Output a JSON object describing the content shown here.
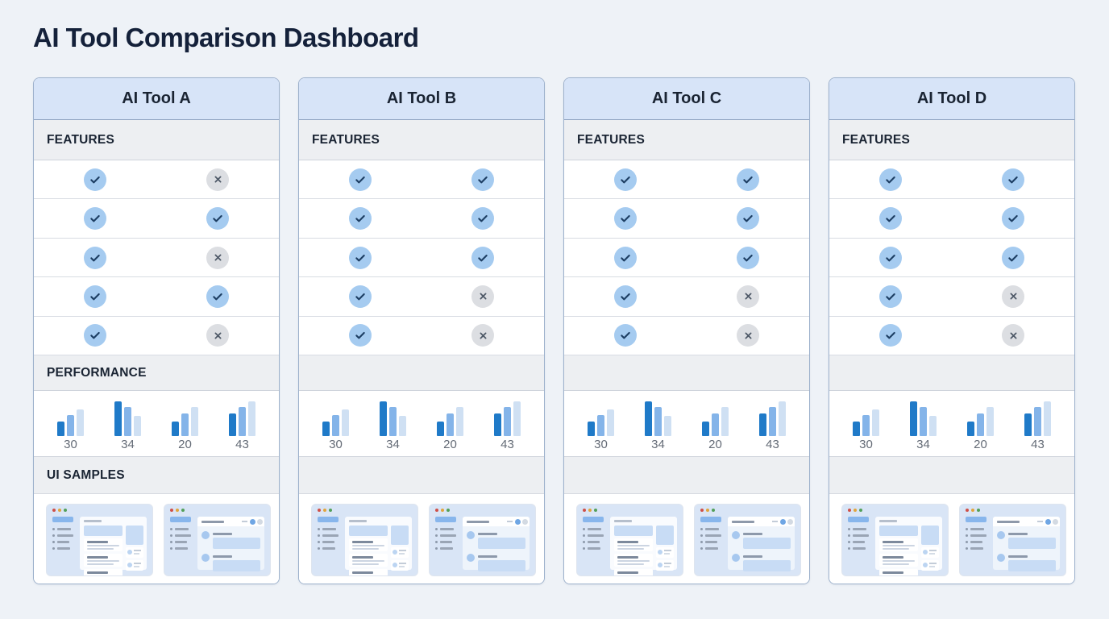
{
  "page": {
    "title": "AI Tool Comparison Dashboard"
  },
  "section_labels": {
    "features": "FEATURES",
    "performance": "PERFORMANCE",
    "ui_samples": "UI SAMPLES"
  },
  "colors": {
    "page_bg": "#eef2f7",
    "card_border": "#9db1cc",
    "card_header_bg": "#d7e4f8",
    "section_bar_bg": "#edeff2",
    "check_circle": "#a5cbf0",
    "check_mark": "#1d3e63",
    "cross_circle": "#dcdee2",
    "cross_mark": "#4d5866",
    "title_color": "#14213a"
  },
  "tools": [
    {
      "name": "AI Tool A",
      "performance_label_visible": true,
      "ui_samples_label_visible": true,
      "features": [
        [
          "check",
          "cross"
        ],
        [
          "check",
          "check"
        ],
        [
          "check",
          "cross"
        ],
        [
          "check",
          "check"
        ],
        [
          "check",
          "cross"
        ]
      ]
    },
    {
      "name": "AI Tool B",
      "performance_label_visible": false,
      "ui_samples_label_visible": false,
      "features": [
        [
          "check",
          "check"
        ],
        [
          "check",
          "check"
        ],
        [
          "check",
          "check"
        ],
        [
          "check",
          "cross"
        ],
        [
          "check",
          "cross"
        ]
      ]
    },
    {
      "name": "AI Tool C",
      "performance_label_visible": false,
      "ui_samples_label_visible": false,
      "features": [
        [
          "check",
          "check"
        ],
        [
          "check",
          "check"
        ],
        [
          "check",
          "check"
        ],
        [
          "check",
          "cross"
        ],
        [
          "check",
          "cross"
        ]
      ]
    },
    {
      "name": "AI Tool D",
      "performance_label_visible": false,
      "ui_samples_label_visible": false,
      "features": [
        [
          "check",
          "check"
        ],
        [
          "check",
          "check"
        ],
        [
          "check",
          "check"
        ],
        [
          "check",
          "cross"
        ],
        [
          "check",
          "cross"
        ]
      ]
    }
  ],
  "chart_data": {
    "type": "bar",
    "description": "Mini grouped spark-bars repeated identically in every tool card",
    "groups": [
      {
        "label": "30",
        "values": [
          18,
          26,
          33
        ]
      },
      {
        "label": "34",
        "values": [
          43,
          36,
          25
        ]
      },
      {
        "label": "20",
        "values": [
          18,
          28,
          36
        ]
      },
      {
        "label": "43",
        "values": [
          28,
          36,
          43
        ]
      }
    ],
    "series_colors": [
      "#1f7ac8",
      "#84b4e9",
      "#cfe0f3"
    ],
    "ylim": [
      0,
      46
    ],
    "grid": false,
    "legend": false
  }
}
